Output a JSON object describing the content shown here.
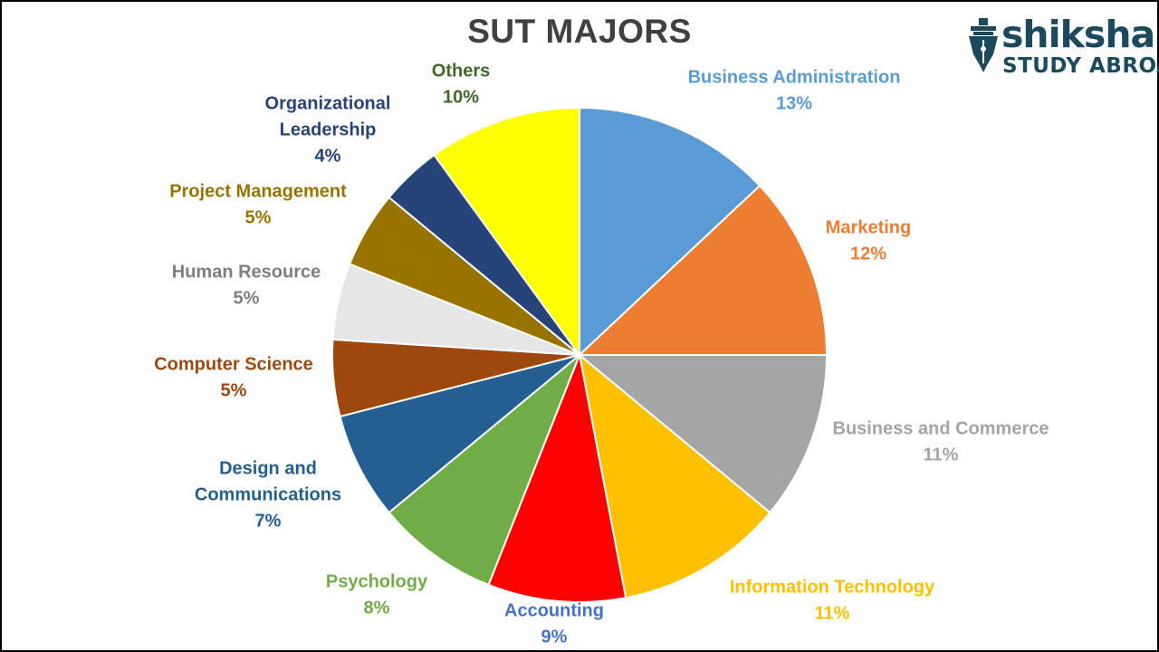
{
  "chart_data": {
    "type": "pie",
    "title": "SUT MAJORS",
    "slices": [
      {
        "label": "Business Administration",
        "value": 13,
        "pct_label": "13%",
        "color": "#5b9bd5"
      },
      {
        "label": "Marketing",
        "value": 12,
        "pct_label": "12%",
        "color": "#ed7d31"
      },
      {
        "label": "Business and Commerce",
        "value": 11,
        "pct_label": "11%",
        "color": "#a5a5a5"
      },
      {
        "label": "Information Technology",
        "value": 11,
        "pct_label": "11%",
        "color": "#ffc000"
      },
      {
        "label": "Accounting",
        "value": 9,
        "pct_label": "9%",
        "color": "#ff0000"
      },
      {
        "label": "Psychology",
        "value": 8,
        "pct_label": "8%",
        "color": "#70ad47"
      },
      {
        "label": "Design and Communications",
        "value": 7,
        "pct_label": "7%",
        "color": "#255e91"
      },
      {
        "label": "Computer Science",
        "value": 5,
        "pct_label": "5%",
        "color": "#9e480e"
      },
      {
        "label": "Human Resource",
        "value": 5,
        "pct_label": "5%",
        "color": "#e7e6e6"
      },
      {
        "label": "Project Management",
        "value": 5,
        "pct_label": "5%",
        "color": "#997300"
      },
      {
        "label": "Organizational Leadership",
        "value": 4,
        "pct_label": "4%",
        "color": "#264478"
      },
      {
        "label": "Others",
        "value": 10,
        "pct_label": "10%",
        "color": "#ffff00"
      }
    ],
    "label_colors": [
      "#5b9bd5",
      "#ed7d31",
      "#a5a5a5",
      "#ffc000",
      "#4472c4",
      "#70ad47",
      "#255e91",
      "#9e480e",
      "#7f7f7f",
      "#997300",
      "#264478",
      "#43682b"
    ],
    "label_lines": [
      [
        "Business Administration"
      ],
      [
        "Marketing"
      ],
      [
        "Business and Commerce"
      ],
      [
        "Information Technology"
      ],
      [
        "Accounting"
      ],
      [
        "Psychology"
      ],
      [
        "Design and",
        "Communications"
      ],
      [
        "Computer Science"
      ],
      [
        "Human Resource"
      ],
      [
        "Project Management"
      ],
      [
        "Organizational",
        "Leadership"
      ],
      [
        "Others"
      ]
    ]
  },
  "logo": {
    "word": "shiksha",
    "sub": "STUDY ABROAD",
    "icon": "pen-nib-icon",
    "color": "#1c4a5c"
  }
}
